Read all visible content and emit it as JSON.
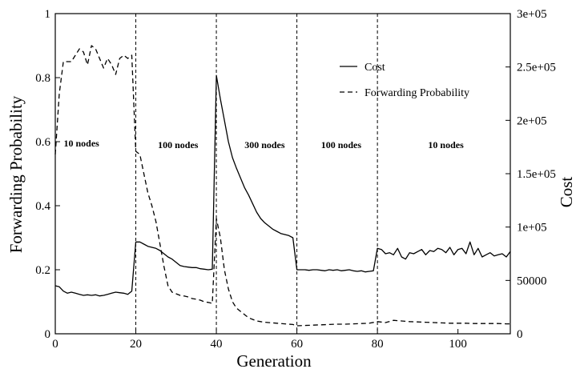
{
  "chart_data": {
    "type": "line",
    "xlabel": "Generation",
    "ylabel_left": "Forwarding Probability",
    "ylabel_right": "Cost",
    "xlim": [
      0,
      113
    ],
    "ylim_left": [
      0,
      1
    ],
    "ylim_right": [
      0,
      300000
    ],
    "x_ticks": [
      0,
      20,
      40,
      60,
      80,
      100
    ],
    "x_tick_labels": [
      "0",
      "20",
      "40",
      "60",
      "80",
      "100"
    ],
    "y_left_ticks": [
      0,
      0.2,
      0.4,
      0.6,
      0.8,
      1
    ],
    "y_left_tick_labels": [
      "0",
      "0.2",
      "0.4",
      "0.6",
      "0.8",
      "1"
    ],
    "y_right_ticks": [
      0,
      50000,
      100000,
      150000,
      200000,
      250000,
      300000
    ],
    "y_right_tick_labels": [
      "0",
      "50000",
      "1e+05",
      "1.5e+05",
      "2e+05",
      "2.5e+05",
      "3e+05"
    ],
    "legend_position": "top-right",
    "vertical_lines": [
      20,
      40,
      60,
      80
    ],
    "regions": [
      {
        "label": "10 nodes",
        "x": 6.5,
        "y": 0.585
      },
      {
        "label": "100 nodes",
        "x": 30.5,
        "y": 0.58
      },
      {
        "label": "300 nodes",
        "x": 52,
        "y": 0.58
      },
      {
        "label": "100 nodes",
        "x": 71,
        "y": 0.58
      },
      {
        "label": "10 nodes",
        "x": 97,
        "y": 0.58
      }
    ],
    "series": [
      {
        "name": "Cost",
        "axis": "right",
        "style": "solid",
        "x": [
          0,
          1,
          2,
          3,
          4,
          5,
          6,
          7,
          8,
          9,
          10,
          11,
          12,
          13,
          14,
          15,
          16,
          17,
          18,
          19,
          20,
          21,
          22,
          23,
          24,
          25,
          26,
          27,
          28,
          29,
          30,
          31,
          32,
          33,
          34,
          35,
          36,
          37,
          38,
          39,
          40,
          41,
          42,
          43,
          44,
          45,
          46,
          47,
          48,
          49,
          50,
          51,
          52,
          53,
          54,
          55,
          56,
          57,
          58,
          59,
          60,
          61,
          62,
          63,
          64,
          65,
          66,
          67,
          68,
          69,
          70,
          71,
          72,
          73,
          74,
          75,
          76,
          77,
          78,
          79,
          80,
          81,
          82,
          83,
          84,
          85,
          86,
          87,
          88,
          89,
          90,
          91,
          92,
          93,
          94,
          95,
          96,
          97,
          98,
          99,
          100,
          101,
          102,
          103,
          104,
          105,
          106,
          107,
          108,
          109,
          110,
          111,
          112,
          113
        ],
        "y": [
          45000,
          44000,
          40000,
          38000,
          39000,
          38000,
          37000,
          36000,
          36500,
          36000,
          36500,
          35500,
          36000,
          37000,
          38000,
          39000,
          38500,
          38000,
          37000,
          40000,
          86000,
          86000,
          84000,
          82000,
          81000,
          80000,
          78000,
          75000,
          72000,
          70000,
          67000,
          64000,
          63000,
          62500,
          62000,
          62000,
          61000,
          60500,
          60000,
          60500,
          242000,
          220000,
          200000,
          180000,
          165000,
          155000,
          146000,
          137000,
          130000,
          122000,
          114000,
          108000,
          104000,
          101000,
          98000,
          96000,
          94000,
          93000,
          92000,
          90000,
          60000,
          60000,
          60000,
          59500,
          60000,
          60000,
          59500,
          59000,
          60000,
          59500,
          60000,
          59000,
          59500,
          60000,
          59000,
          58500,
          59000,
          58000,
          58500,
          59000,
          80000,
          79000,
          75000,
          76000,
          74000,
          80000,
          72000,
          70000,
          76000,
          75000,
          77000,
          79000,
          74000,
          78000,
          77000,
          80000,
          79000,
          76000,
          81000,
          74000,
          79000,
          80000,
          75000,
          86000,
          74000,
          80000,
          72000,
          74000,
          76000,
          73000,
          74000,
          75000,
          72000,
          77000
        ]
      },
      {
        "name": "Forwarding Probability",
        "axis": "left",
        "style": "dashed",
        "x": [
          0,
          1,
          2,
          3,
          4,
          5,
          6,
          7,
          8,
          9,
          10,
          11,
          12,
          13,
          14,
          15,
          16,
          17,
          18,
          19,
          20,
          21,
          22,
          23,
          24,
          25,
          26,
          27,
          28,
          29,
          30,
          31,
          32,
          33,
          34,
          35,
          36,
          37,
          38,
          39,
          40,
          41,
          42,
          43,
          44,
          45,
          46,
          47,
          48,
          49,
          50,
          51,
          52,
          53,
          54,
          55,
          56,
          57,
          58,
          59,
          60,
          62,
          64,
          66,
          68,
          70,
          72,
          74,
          76,
          78,
          80,
          82,
          84,
          86,
          88,
          90,
          92,
          94,
          96,
          98,
          100,
          102,
          104,
          106,
          108,
          110,
          112,
          113
        ],
        "y": [
          0.56,
          0.75,
          0.85,
          0.85,
          0.85,
          0.87,
          0.89,
          0.88,
          0.84,
          0.9,
          0.89,
          0.86,
          0.83,
          0.86,
          0.84,
          0.81,
          0.86,
          0.87,
          0.86,
          0.87,
          0.57,
          0.56,
          0.5,
          0.44,
          0.4,
          0.35,
          0.28,
          0.21,
          0.15,
          0.13,
          0.125,
          0.12,
          0.118,
          0.115,
          0.11,
          0.108,
          0.105,
          0.1,
          0.098,
          0.095,
          0.36,
          0.3,
          0.2,
          0.14,
          0.1,
          0.08,
          0.07,
          0.06,
          0.05,
          0.045,
          0.04,
          0.038,
          0.036,
          0.035,
          0.034,
          0.033,
          0.032,
          0.031,
          0.03,
          0.029,
          0.025,
          0.026,
          0.027,
          0.028,
          0.029,
          0.03,
          0.03,
          0.031,
          0.032,
          0.033,
          0.038,
          0.035,
          0.042,
          0.04,
          0.038,
          0.037,
          0.036,
          0.035,
          0.034,
          0.033,
          0.033,
          0.033,
          0.032,
          0.032,
          0.032,
          0.032,
          0.031,
          0.031
        ]
      }
    ]
  }
}
